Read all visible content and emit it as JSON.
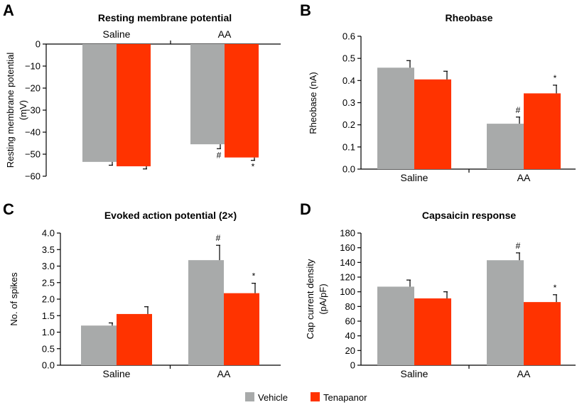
{
  "legend": {
    "items": [
      {
        "label": "Vehicle",
        "color": "#a8aaaa"
      },
      {
        "label": "Tenapanor",
        "color": "#ff3300"
      }
    ]
  },
  "chart_data": [
    {
      "panel": "A",
      "type": "bar",
      "title": "Resting membrane potential",
      "ylabel": [
        "Resting membrane potential",
        "(mV)"
      ],
      "xlabel": "",
      "ylim": [
        -60,
        0
      ],
      "yticks": [
        0,
        -10,
        -20,
        -30,
        -40,
        -50,
        -60
      ],
      "ytick_labels": [
        "0",
        "−10",
        "−20",
        "−30",
        "−40",
        "−50",
        "−60"
      ],
      "categories": [
        "Saline",
        "AA"
      ],
      "category_labels_position": "top",
      "series": [
        {
          "name": "Vehicle",
          "values": [
            -53.5,
            -45.5
          ],
          "errors": [
            1.5,
            2.0
          ],
          "marks": [
            "",
            "#"
          ]
        },
        {
          "name": "Tenapanor",
          "values": [
            -55.5,
            -51.5
          ],
          "errors": [
            1.2,
            1.3
          ],
          "marks": [
            "",
            "*"
          ]
        }
      ]
    },
    {
      "panel": "B",
      "type": "bar",
      "title": "Rheobase",
      "ylabel": [
        "Rheobase (nA)"
      ],
      "xlabel": "",
      "ylim": [
        0,
        0.6
      ],
      "yticks": [
        0,
        0.1,
        0.2,
        0.3,
        0.4,
        0.5,
        0.6
      ],
      "ytick_labels": [
        "0.0",
        "0.1",
        "0.2",
        "0.3",
        "0.4",
        "0.5",
        "0.6"
      ],
      "categories": [
        "Saline",
        "AA"
      ],
      "category_labels_position": "bottom",
      "series": [
        {
          "name": "Vehicle",
          "values": [
            0.458,
            0.205
          ],
          "errors": [
            0.032,
            0.03
          ],
          "marks": [
            "",
            "#"
          ]
        },
        {
          "name": "Tenapanor",
          "values": [
            0.405,
            0.342
          ],
          "errors": [
            0.037,
            0.037
          ],
          "marks": [
            "",
            "*"
          ]
        }
      ]
    },
    {
      "panel": "C",
      "type": "bar",
      "title": "Evoked action potential (2×)",
      "ylabel": [
        "No. of spikes"
      ],
      "xlabel": "",
      "ylim": [
        0,
        4.0
      ],
      "yticks": [
        0,
        0.5,
        1.0,
        1.5,
        2.0,
        2.5,
        3.0,
        3.5,
        4.0
      ],
      "ytick_labels": [
        "0.0",
        "0.5",
        "1.0",
        "1.5",
        "2.0",
        "2.5",
        "3.0",
        "3.5",
        "4.0"
      ],
      "categories": [
        "Saline",
        "AA"
      ],
      "category_labels_position": "bottom",
      "series": [
        {
          "name": "Vehicle",
          "values": [
            1.2,
            3.18
          ],
          "errors": [
            0.08,
            0.45
          ],
          "marks": [
            "",
            "#"
          ]
        },
        {
          "name": "Tenapanor",
          "values": [
            1.55,
            2.18
          ],
          "errors": [
            0.22,
            0.3
          ],
          "marks": [
            "",
            "*"
          ]
        }
      ]
    },
    {
      "panel": "D",
      "type": "bar",
      "title": "Capsaicin response",
      "ylabel": [
        "Cap current density",
        "(pA/pF)"
      ],
      "xlabel": "",
      "ylim": [
        0,
        180
      ],
      "yticks": [
        0,
        20,
        40,
        60,
        80,
        100,
        120,
        140,
        160,
        180
      ],
      "ytick_labels": [
        "0",
        "20",
        "40",
        "60",
        "80",
        "100",
        "120",
        "140",
        "160",
        "180"
      ],
      "categories": [
        "Saline",
        "AA"
      ],
      "category_labels_position": "bottom",
      "series": [
        {
          "name": "Vehicle",
          "values": [
            107,
            143
          ],
          "errors": [
            9,
            10
          ],
          "marks": [
            "",
            "#"
          ]
        },
        {
          "name": "Tenapanor",
          "values": [
            91,
            86
          ],
          "errors": [
            9,
            10
          ],
          "marks": [
            "",
            "*"
          ]
        }
      ]
    }
  ]
}
